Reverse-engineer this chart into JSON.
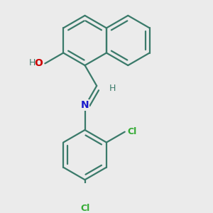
{
  "bg_color": "#ebebeb",
  "bond_color": "#3a7a6a",
  "bond_width": 1.6,
  "O_color": "#cc0000",
  "N_color": "#1a1acc",
  "Cl_color": "#33aa33",
  "H_color": "#3a7a6a",
  "fig_size": [
    3.0,
    3.0
  ],
  "dpi": 100,
  "xlim": [
    0.0,
    3.0
  ],
  "ylim": [
    0.0,
    3.2
  ]
}
